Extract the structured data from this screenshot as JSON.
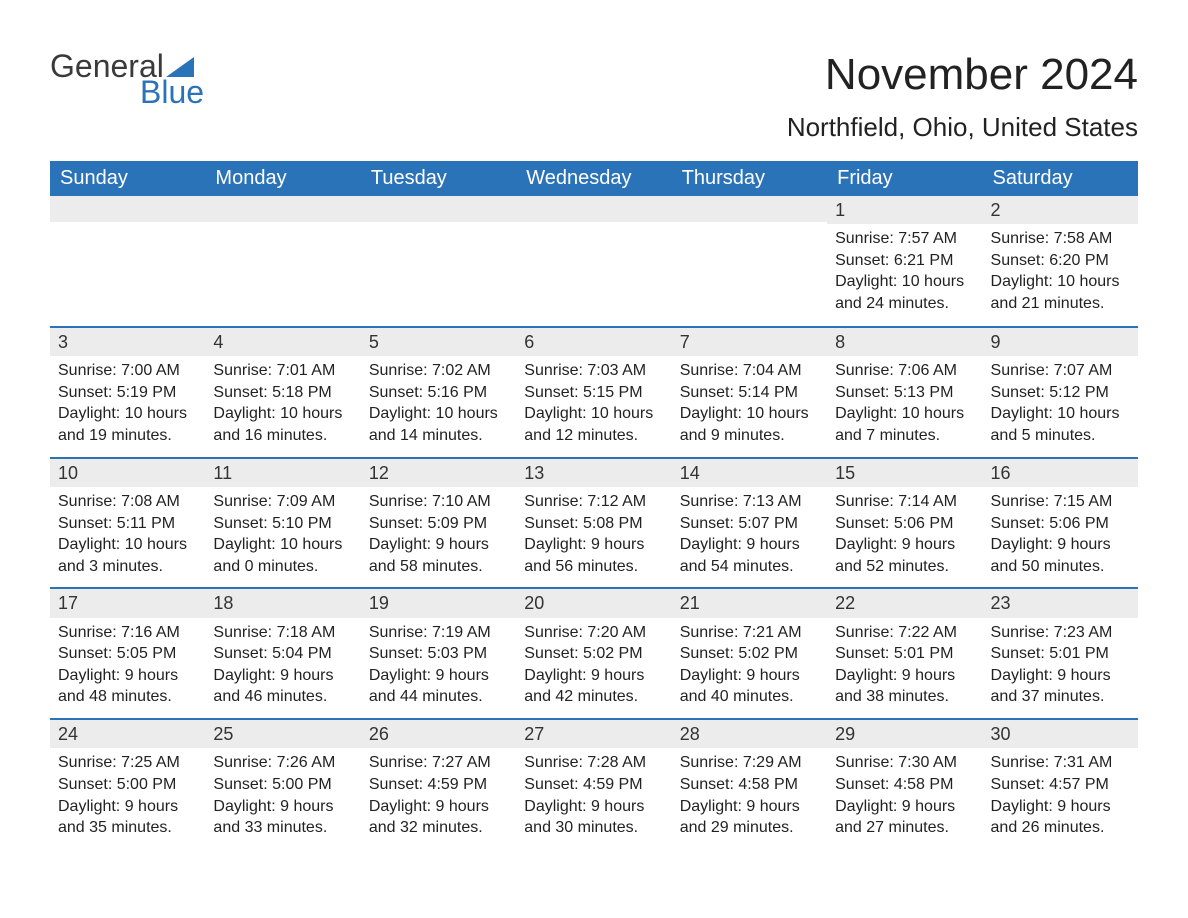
{
  "logo": {
    "word1": "General",
    "word2": "Blue"
  },
  "title": "November 2024",
  "location": "Northfield, Ohio, United States",
  "colors": {
    "header_bg": "#2b73b8",
    "header_text": "#ffffff",
    "daybar_bg": "#ececec",
    "daybar_border": "#2b73b8",
    "body_text": "#222222",
    "page_bg": "#ffffff"
  },
  "columns": [
    "Sunday",
    "Monday",
    "Tuesday",
    "Wednesday",
    "Thursday",
    "Friday",
    "Saturday"
  ],
  "weeks": [
    [
      {
        "empty": true
      },
      {
        "empty": true
      },
      {
        "empty": true
      },
      {
        "empty": true
      },
      {
        "empty": true
      },
      {
        "n": "1",
        "sunrise": "7:57 AM",
        "sunset": "6:21 PM",
        "daylight": "10 hours and 24 minutes."
      },
      {
        "n": "2",
        "sunrise": "7:58 AM",
        "sunset": "6:20 PM",
        "daylight": "10 hours and 21 minutes."
      }
    ],
    [
      {
        "n": "3",
        "sunrise": "7:00 AM",
        "sunset": "5:19 PM",
        "daylight": "10 hours and 19 minutes."
      },
      {
        "n": "4",
        "sunrise": "7:01 AM",
        "sunset": "5:18 PM",
        "daylight": "10 hours and 16 minutes."
      },
      {
        "n": "5",
        "sunrise": "7:02 AM",
        "sunset": "5:16 PM",
        "daylight": "10 hours and 14 minutes."
      },
      {
        "n": "6",
        "sunrise": "7:03 AM",
        "sunset": "5:15 PM",
        "daylight": "10 hours and 12 minutes."
      },
      {
        "n": "7",
        "sunrise": "7:04 AM",
        "sunset": "5:14 PM",
        "daylight": "10 hours and 9 minutes."
      },
      {
        "n": "8",
        "sunrise": "7:06 AM",
        "sunset": "5:13 PM",
        "daylight": "10 hours and 7 minutes."
      },
      {
        "n": "9",
        "sunrise": "7:07 AM",
        "sunset": "5:12 PM",
        "daylight": "10 hours and 5 minutes."
      }
    ],
    [
      {
        "n": "10",
        "sunrise": "7:08 AM",
        "sunset": "5:11 PM",
        "daylight": "10 hours and 3 minutes."
      },
      {
        "n": "11",
        "sunrise": "7:09 AM",
        "sunset": "5:10 PM",
        "daylight": "10 hours and 0 minutes."
      },
      {
        "n": "12",
        "sunrise": "7:10 AM",
        "sunset": "5:09 PM",
        "daylight": "9 hours and 58 minutes."
      },
      {
        "n": "13",
        "sunrise": "7:12 AM",
        "sunset": "5:08 PM",
        "daylight": "9 hours and 56 minutes."
      },
      {
        "n": "14",
        "sunrise": "7:13 AM",
        "sunset": "5:07 PM",
        "daylight": "9 hours and 54 minutes."
      },
      {
        "n": "15",
        "sunrise": "7:14 AM",
        "sunset": "5:06 PM",
        "daylight": "9 hours and 52 minutes."
      },
      {
        "n": "16",
        "sunrise": "7:15 AM",
        "sunset": "5:06 PM",
        "daylight": "9 hours and 50 minutes."
      }
    ],
    [
      {
        "n": "17",
        "sunrise": "7:16 AM",
        "sunset": "5:05 PM",
        "daylight": "9 hours and 48 minutes."
      },
      {
        "n": "18",
        "sunrise": "7:18 AM",
        "sunset": "5:04 PM",
        "daylight": "9 hours and 46 minutes."
      },
      {
        "n": "19",
        "sunrise": "7:19 AM",
        "sunset": "5:03 PM",
        "daylight": "9 hours and 44 minutes."
      },
      {
        "n": "20",
        "sunrise": "7:20 AM",
        "sunset": "5:02 PM",
        "daylight": "9 hours and 42 minutes."
      },
      {
        "n": "21",
        "sunrise": "7:21 AM",
        "sunset": "5:02 PM",
        "daylight": "9 hours and 40 minutes."
      },
      {
        "n": "22",
        "sunrise": "7:22 AM",
        "sunset": "5:01 PM",
        "daylight": "9 hours and 38 minutes."
      },
      {
        "n": "23",
        "sunrise": "7:23 AM",
        "sunset": "5:01 PM",
        "daylight": "9 hours and 37 minutes."
      }
    ],
    [
      {
        "n": "24",
        "sunrise": "7:25 AM",
        "sunset": "5:00 PM",
        "daylight": "9 hours and 35 minutes."
      },
      {
        "n": "25",
        "sunrise": "7:26 AM",
        "sunset": "5:00 PM",
        "daylight": "9 hours and 33 minutes."
      },
      {
        "n": "26",
        "sunrise": "7:27 AM",
        "sunset": "4:59 PM",
        "daylight": "9 hours and 32 minutes."
      },
      {
        "n": "27",
        "sunrise": "7:28 AM",
        "sunset": "4:59 PM",
        "daylight": "9 hours and 30 minutes."
      },
      {
        "n": "28",
        "sunrise": "7:29 AM",
        "sunset": "4:58 PM",
        "daylight": "9 hours and 29 minutes."
      },
      {
        "n": "29",
        "sunrise": "7:30 AM",
        "sunset": "4:58 PM",
        "daylight": "9 hours and 27 minutes."
      },
      {
        "n": "30",
        "sunrise": "7:31 AM",
        "sunset": "4:57 PM",
        "daylight": "9 hours and 26 minutes."
      }
    ]
  ],
  "labels": {
    "sunrise": "Sunrise: ",
    "sunset": "Sunset: ",
    "daylight": "Daylight: "
  }
}
